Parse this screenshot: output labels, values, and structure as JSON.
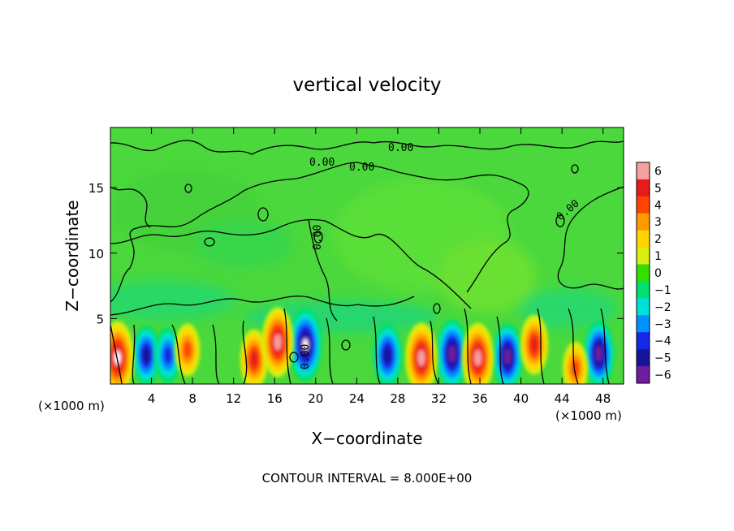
{
  "chart_data": {
    "type": "heatmap",
    "title": "vertical velocity",
    "xlabel": "X−coordinate",
    "ylabel": "Z−coordinate",
    "x_unit": "(×1000 m)",
    "x_ticks": [
      4,
      8,
      12,
      16,
      20,
      24,
      28,
      32,
      36,
      40,
      44,
      48
    ],
    "y_ticks": [
      5,
      10,
      15
    ],
    "xlim": [
      0,
      50
    ],
    "ylim": [
      0,
      19.6
    ],
    "colorbar": {
      "levels": [
        6,
        5,
        4,
        3,
        2,
        1,
        0,
        -1,
        -2,
        -3,
        -4,
        -5,
        -6
      ],
      "labels": [
        "6",
        "5",
        "4",
        "3",
        "2",
        "1",
        "0",
        "−1",
        "−2",
        "−3",
        "−4",
        "−5",
        "−6"
      ],
      "colors": [
        "#f7a0a0",
        "#e81a1a",
        "#ff4400",
        "#ff9a00",
        "#ffd400",
        "#d8ef10",
        "#34de00",
        "#00e070",
        "#00e0d8",
        "#0090ff",
        "#1428e8",
        "#16149a",
        "#6e1ca0"
      ]
    },
    "contour_labels": [
      "0.00",
      "0.00",
      "0.00",
      "0.00",
      "0.00",
      "0.00"
    ],
    "footer": "CONTOUR INTERVAL = 8.000E+00",
    "grid": false,
    "extrema": {
      "updrafts": [
        {
          "x": 0.7,
          "z": 2.0,
          "w": 6.5
        },
        {
          "x": 7.5,
          "z": 2.6,
          "w": 3.5
        },
        {
          "x": 14.0,
          "z": 1.9,
          "w": 4.5
        },
        {
          "x": 16.3,
          "z": 3.2,
          "w": 6.0
        },
        {
          "x": 30.3,
          "z": 2.0,
          "w": 6.0
        },
        {
          "x": 35.8,
          "z": 2.0,
          "w": 6.0
        },
        {
          "x": 41.3,
          "z": 3.0,
          "w": 4.5
        },
        {
          "x": 45.3,
          "z": 1.2,
          "w": 3.5
        }
      ],
      "downdrafts": [
        {
          "x": 3.5,
          "z": 2.2,
          "w": -4.5
        },
        {
          "x": 5.6,
          "z": 2.2,
          "w": -4.0
        },
        {
          "x": 19.0,
          "z": 3.0,
          "w": -6.5
        },
        {
          "x": 27.0,
          "z": 2.2,
          "w": -5.0
        },
        {
          "x": 33.3,
          "z": 2.3,
          "w": -6.0
        },
        {
          "x": 38.7,
          "z": 2.1,
          "w": -5.5
        },
        {
          "x": 47.6,
          "z": 2.3,
          "w": -5.5
        }
      ]
    }
  }
}
